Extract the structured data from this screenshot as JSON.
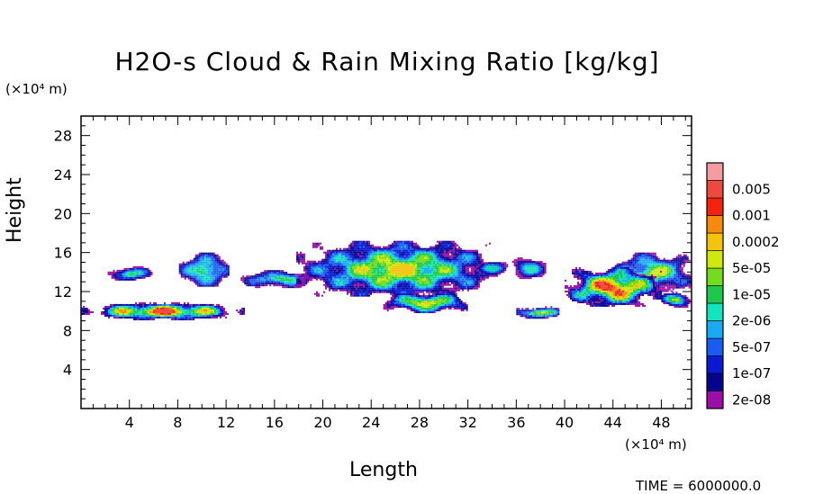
{
  "chart_data": {
    "type": "heatmap",
    "title": "H2O-s Cloud & Rain Mixing Ratio [kg/kg]",
    "xlabel": "Length",
    "ylabel": "Height",
    "x_unit": "(×10⁴ m)",
    "y_unit": "(×10⁴ m)",
    "xlim": [
      0,
      50.5
    ],
    "ylim": [
      0,
      30
    ],
    "xticks": [
      4,
      8,
      12,
      16,
      20,
      24,
      28,
      32,
      36,
      40,
      44,
      48
    ],
    "yticks": [
      4,
      8,
      12,
      16,
      20,
      24,
      28
    ],
    "time_text": "TIME = 6000000.0",
    "colorbar": {
      "labels": [
        "0.005",
        "0.001",
        "0.0002",
        "5e-05",
        "1e-05",
        "2e-06",
        "5e-07",
        "1e-07",
        "2e-08"
      ],
      "colors": [
        "#9b0fa6",
        "#06048e",
        "#0a1ad0",
        "#1a5cf0",
        "#18aaf2",
        "#14e4bc",
        "#1ec84a",
        "#74dc1c",
        "#cfe80e",
        "#f4c40c",
        "#f68a0e",
        "#f4220e",
        "#ec4a3e",
        "#f49ca0"
      ]
    },
    "cloud_regions": [
      {
        "x": [
          2.2,
          5.8
        ],
        "y": [
          13.2,
          14.6
        ],
        "max_level": 6
      },
      {
        "x": [
          8.1,
          12.2
        ],
        "y": [
          12.5,
          16.0
        ],
        "max_level": 7
      },
      {
        "x": [
          13.2,
          19.5
        ],
        "y": [
          12.5,
          14.2
        ],
        "max_level": 6
      },
      {
        "x": [
          17.8,
          34.5
        ],
        "y": [
          11.5,
          17.2
        ],
        "max_level": 9
      },
      {
        "x": [
          32.5,
          35.5
        ],
        "y": [
          13.8,
          15.2
        ],
        "max_level": 5
      },
      {
        "x": [
          35.5,
          38.5
        ],
        "y": [
          13.4,
          15.5
        ],
        "max_level": 5
      },
      {
        "x": [
          44.0,
          50.5
        ],
        "y": [
          12.0,
          16.0
        ],
        "max_level": 8
      },
      {
        "x": [
          40.0,
          48.0
        ],
        "y": [
          10.5,
          14.5
        ],
        "max_level": 12
      },
      {
        "x": [
          0.0,
          13.5
        ],
        "y": [
          9.2,
          10.9
        ],
        "max_level": 12
      },
      {
        "x": [
          25.0,
          32.0
        ],
        "y": [
          9.9,
          12.0
        ],
        "max_level": 9
      },
      {
        "x": [
          36.0,
          39.5
        ],
        "y": [
          9.3,
          10.5
        ],
        "max_level": 10
      },
      {
        "x": [
          48.0,
          50.5
        ],
        "y": [
          10.5,
          12.0
        ],
        "max_level": 8
      }
    ]
  }
}
